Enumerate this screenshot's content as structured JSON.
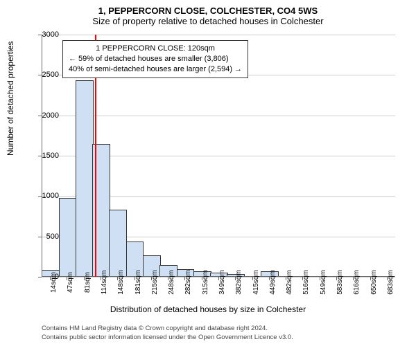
{
  "title_line1": "1, PEPPERCORN CLOSE, COLCHESTER, CO4 5WS",
  "title_line2": "Size of property relative to detached houses in Colchester",
  "ylabel": "Number of detached properties",
  "xlabel": "Distribution of detached houses by size in Colchester",
  "ylim": [
    0,
    3000
  ],
  "ytick_step": 500,
  "yticks": [
    0,
    500,
    1000,
    1500,
    2000,
    2500,
    3000
  ],
  "xticks": [
    "14sqm",
    "47sqm",
    "81sqm",
    "114sqm",
    "148sqm",
    "181sqm",
    "215sqm",
    "248sqm",
    "282sqm",
    "315sqm",
    "349sqm",
    "382sqm",
    "415sqm",
    "449sqm",
    "482sqm",
    "516sqm",
    "549sqm",
    "583sqm",
    "616sqm",
    "650sqm",
    "683sqm"
  ],
  "values": [
    80,
    970,
    2430,
    1640,
    820,
    430,
    260,
    140,
    90,
    60,
    40,
    30,
    0,
    60,
    0,
    0,
    0,
    0,
    0,
    0,
    0
  ],
  "bar_fill": "#cfe0f5",
  "bar_stroke": "#333333",
  "grid_color": "#cccccc",
  "background_color": "#ffffff",
  "refline_color": "#ff0000",
  "refline_x_index": 3.15,
  "annotation": {
    "line1": "1 PEPPERCORN CLOSE: 120sqm",
    "line2": "← 59% of detached houses are smaller (3,806)",
    "line3": "40% of semi-detached houses are larger (2,594) →"
  },
  "footer_line1": "Contains HM Land Registry data © Crown copyright and database right 2024.",
  "footer_line2": "Contains public sector information licensed under the Open Government Licence v3.0.",
  "chart_type": "histogram",
  "title_fontsize": 13,
  "label_fontsize": 12,
  "tick_fontsize": 10
}
